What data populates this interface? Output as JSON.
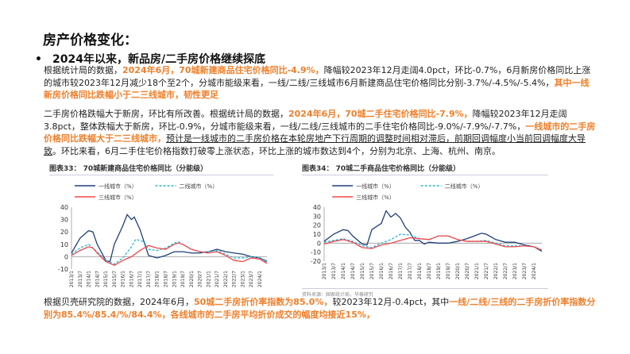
{
  "title": "房产价格变化：",
  "bullet": "2024年以来，新品房/二手房价格继续探底",
  "p1": {
    "t1": "根据统计局的数据，",
    "h1": "2024年6月，70城新建商品住宅价格同比-4.9%，",
    "t2": "降幅较2023年12月走阔4.0pct，环比-0.7%，6月新房价格同比上涨的城市较2023年12月减少18个至2个，分城市能级来看，一线/二线/三线城市6月新建商品住宅价格同比分别-3.7%/-4.5%/-5.4%，",
    "h2": "其中一线新房价格同比跌幅小于二三线城市，韧性更足"
  },
  "p2": {
    "t1": "二手房价格跌幅大于新房，环比有所改善。根据统计局的数据，",
    "h1": "2024年6月，70城二手住宅价格同比-7.9%，",
    "t2": "降幅较2023年12月走阔3.8pct，整体跌幅大于新房，环比-0.9%，分城市能级来看，一线/二线/三线城市的二手住宅价格同比-9.0%/-7.9%/-7.7%，",
    "h2": "一线城市的二手房价格同比跌幅大于二三线城市，",
    "u1": "预计是一线城市的二手房价格在本轮房地产下行周期的调整时间相对滞后，前期回调幅度小当前回调幅度大导致",
    "t3": "。环比来看，6月二手住宅价格指数打破零上涨状态，环比上涨的城市数达到4个，分别为北京、上海、杭州、南京。"
  },
  "p3": {
    "t1": "根据贝壳研究院的数据，2024年6月，",
    "h1": "50城二手房折价率指数为85.0%，",
    "t2": "较2023年12月-0.4pct，其中",
    "h2": "一线/二线/三线的二手房折价率指数分别为85.4%/85.4/%/84.4%，各线城市的二手房平均折价成交的幅度均接近15%，"
  },
  "chart_data": [
    {
      "type": "line",
      "title": "图表33：  70城新建商品住宅价格同比（分能级）",
      "ylim": [
        -10,
        40
      ],
      "yticks": [
        -10,
        0,
        10,
        20,
        30,
        40
      ],
      "xticks": [
        "2013/1",
        "2013/7",
        "2014/1",
        "2014/7",
        "2015/1",
        "2015/7",
        "2016/1",
        "2016/7",
        "2017/1",
        "2017/7",
        "2018/1",
        "2018/7",
        "2019/1",
        "2019/7",
        "2020/1",
        "2020/7",
        "2021/1",
        "2021/7",
        "2022/1",
        "2022/7",
        "2023/1",
        "2023/7",
        "2024/1"
      ],
      "series": [
        {
          "name": "一线城市（%）",
          "color": "#1f3f7a",
          "dash": false,
          "points": [
            [
              "2013/1",
              3
            ],
            [
              "2013/7",
              15
            ],
            [
              "2014/1",
              21
            ],
            [
              "2014/4",
              20
            ],
            [
              "2014/7",
              10
            ],
            [
              "2015/1",
              -3
            ],
            [
              "2015/4",
              -4
            ],
            [
              "2015/7",
              10
            ],
            [
              "2016/1",
              25
            ],
            [
              "2016/4",
              34
            ],
            [
              "2016/7",
              30
            ],
            [
              "2016/9",
              32
            ],
            [
              "2017/1",
              22
            ],
            [
              "2017/7",
              1
            ],
            [
              "2018/1",
              -1
            ],
            [
              "2018/7",
              1
            ],
            [
              "2019/1",
              4
            ],
            [
              "2019/7",
              4
            ],
            [
              "2020/1",
              3
            ],
            [
              "2020/7",
              3
            ],
            [
              "2021/1",
              4
            ],
            [
              "2021/7",
              6
            ],
            [
              "2022/1",
              4
            ],
            [
              "2022/7",
              3
            ],
            [
              "2023/1",
              2
            ],
            [
              "2023/7",
              0
            ],
            [
              "2024/1",
              -1
            ],
            [
              "2024/6",
              -3.7
            ]
          ]
        },
        {
          "name": "二线城市（%）",
          "color": "#2bb5d6",
          "dash": true,
          "points": [
            [
              "2013/1",
              2
            ],
            [
              "2013/7",
              7
            ],
            [
              "2014/1",
              10
            ],
            [
              "2014/7",
              4
            ],
            [
              "2015/1",
              -3
            ],
            [
              "2015/7",
              -6
            ],
            [
              "2016/1",
              -1
            ],
            [
              "2016/7",
              8
            ],
            [
              "2016/10",
              14
            ],
            [
              "2017/4",
              12
            ],
            [
              "2017/7",
              6
            ],
            [
              "2018/1",
              5
            ],
            [
              "2018/7",
              7
            ],
            [
              "2019/1",
              11
            ],
            [
              "2019/4",
              12
            ],
            [
              "2019/7",
              10
            ],
            [
              "2020/1",
              6
            ],
            [
              "2020/7",
              4
            ],
            [
              "2021/1",
              4
            ],
            [
              "2021/7",
              5
            ],
            [
              "2022/1",
              2
            ],
            [
              "2022/7",
              -1
            ],
            [
              "2023/1",
              -1
            ],
            [
              "2023/7",
              0
            ],
            [
              "2024/1",
              -1
            ],
            [
              "2024/6",
              -4.5
            ]
          ]
        },
        {
          "name": "三线城市（%）",
          "color": "#f0484a",
          "dash": false,
          "points": [
            [
              "2013/1",
              1
            ],
            [
              "2013/7",
              5
            ],
            [
              "2014/1",
              8
            ],
            [
              "2014/4",
              7
            ],
            [
              "2014/7",
              3
            ],
            [
              "2015/1",
              -4
            ],
            [
              "2015/7",
              -7
            ],
            [
              "2016/1",
              -3
            ],
            [
              "2016/7",
              0
            ],
            [
              "2017/1",
              5
            ],
            [
              "2017/7",
              9
            ],
            [
              "2018/1",
              7
            ],
            [
              "2018/7",
              6
            ],
            [
              "2019/1",
              10
            ],
            [
              "2019/4",
              11
            ],
            [
              "2019/7",
              10
            ],
            [
              "2020/1",
              6
            ],
            [
              "2020/7",
              4
            ],
            [
              "2021/1",
              3
            ],
            [
              "2021/7",
              4
            ],
            [
              "2022/1",
              1
            ],
            [
              "2022/7",
              -3
            ],
            [
              "2023/1",
              -4
            ],
            [
              "2023/7",
              -1
            ],
            [
              "2024/1",
              -2
            ],
            [
              "2024/6",
              -5.4
            ]
          ]
        }
      ]
    },
    {
      "type": "line",
      "title": "图表34：  70城二手商品住宅价格同比（分能级）",
      "source": "资料来源：国家统计局，华泰研究",
      "ylim": [
        -20,
        40
      ],
      "yticks": [
        -20,
        -10,
        0,
        10,
        20,
        30,
        40
      ],
      "xticks": [
        "2013/1",
        "2013/7",
        "2014/1",
        "2014/7",
        "2015/1",
        "2015/7",
        "2016/1",
        "2016/7",
        "2017/1",
        "2017/7",
        "2018/1",
        "2018/7",
        "2019/1",
        "2019/7",
        "2020/1",
        "2020/7",
        "2021/1",
        "2021/7",
        "2022/1",
        "2022/7",
        "2023/1",
        "2023/7",
        "2024/1"
      ],
      "series": [
        {
          "name": "一线城市（%）",
          "color": "#1f3f7a",
          "dash": false,
          "points": [
            [
              "2013/1",
              2
            ],
            [
              "2013/7",
              10
            ],
            [
              "2014/1",
              15
            ],
            [
              "2014/4",
              14
            ],
            [
              "2014/7",
              8
            ],
            [
              "2015/1",
              -1
            ],
            [
              "2015/4",
              -2
            ],
            [
              "2015/7",
              15
            ],
            [
              "2016/1",
              22
            ],
            [
              "2016/4",
              36
            ],
            [
              "2016/7",
              29
            ],
            [
              "2016/10",
              33
            ],
            [
              "2017/1",
              28
            ],
            [
              "2017/4",
              18
            ],
            [
              "2017/7",
              12
            ],
            [
              "2017/10",
              3
            ],
            [
              "2018/1",
              3
            ],
            [
              "2018/4",
              -1
            ],
            [
              "2018/7",
              1
            ],
            [
              "2019/1",
              0
            ],
            [
              "2019/7",
              0
            ],
            [
              "2020/1",
              2
            ],
            [
              "2020/7",
              5
            ],
            [
              "2021/1",
              9
            ],
            [
              "2021/4",
              11
            ],
            [
              "2021/7",
              10
            ],
            [
              "2022/1",
              4
            ],
            [
              "2022/7",
              1
            ],
            [
              "2023/1",
              1
            ],
            [
              "2023/7",
              -2
            ],
            [
              "2024/1",
              -4
            ],
            [
              "2024/6",
              -9.0
            ]
          ]
        },
        {
          "name": "二线城市（%）",
          "color": "#2bb5d6",
          "dash": true,
          "points": [
            [
              "2013/1",
              1
            ],
            [
              "2013/7",
              3
            ],
            [
              "2014/1",
              5
            ],
            [
              "2014/7",
              2
            ],
            [
              "2015/1",
              -3
            ],
            [
              "2015/7",
              -5
            ],
            [
              "2016/1",
              0
            ],
            [
              "2016/7",
              4
            ],
            [
              "2017/1",
              10
            ],
            [
              "2017/7",
              9
            ],
            [
              "2018/1",
              5
            ],
            [
              "2018/7",
              4
            ],
            [
              "2019/1",
              8
            ],
            [
              "2019/7",
              8
            ],
            [
              "2020/1",
              4
            ],
            [
              "2020/7",
              2
            ],
            [
              "2021/1",
              2
            ],
            [
              "2021/7",
              3
            ],
            [
              "2022/1",
              0
            ],
            [
              "2022/7",
              -3
            ],
            [
              "2023/1",
              -3
            ],
            [
              "2023/7",
              -3
            ],
            [
              "2024/1",
              -4
            ],
            [
              "2024/6",
              -7.9
            ]
          ]
        },
        {
          "name": "三线城市（%）",
          "color": "#f0484a",
          "dash": false,
          "points": [
            [
              "2013/1",
              -1
            ],
            [
              "2013/7",
              2
            ],
            [
              "2014/1",
              4
            ],
            [
              "2014/7",
              1
            ],
            [
              "2015/1",
              -5
            ],
            [
              "2015/7",
              -6
            ],
            [
              "2016/1",
              -2
            ],
            [
              "2016/7",
              0
            ],
            [
              "2017/1",
              3
            ],
            [
              "2017/7",
              6
            ],
            [
              "2018/1",
              5
            ],
            [
              "2018/7",
              4
            ],
            [
              "2019/1",
              8
            ],
            [
              "2019/7",
              8
            ],
            [
              "2020/1",
              4
            ],
            [
              "2020/7",
              2
            ],
            [
              "2021/1",
              2
            ],
            [
              "2021/7",
              2
            ],
            [
              "2022/1",
              -1
            ],
            [
              "2022/7",
              -4
            ],
            [
              "2023/1",
              -4
            ],
            [
              "2023/7",
              -3
            ],
            [
              "2024/1",
              -4
            ],
            [
              "2024/6",
              -7.7
            ]
          ]
        }
      ]
    }
  ]
}
